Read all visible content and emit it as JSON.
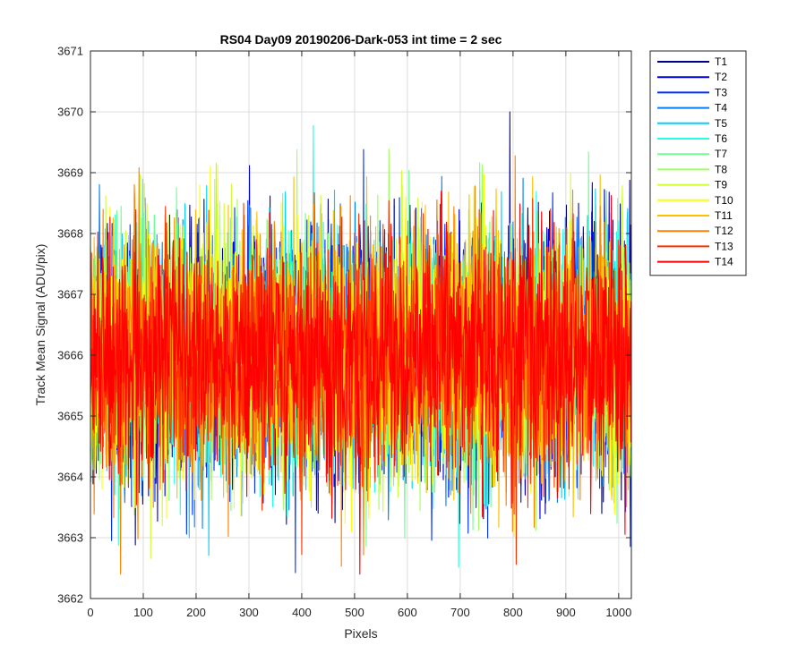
{
  "chart_data": {
    "type": "line",
    "title": "RS04 Day09 20190206-Dark-053 int time = 2 sec",
    "xlabel": "Pixels",
    "ylabel": "Track Mean Signal (ADU/pix)",
    "xlim": [
      0,
      1024
    ],
    "ylim": [
      3662,
      3671
    ],
    "xticks": [
      0,
      100,
      200,
      300,
      400,
      500,
      600,
      700,
      800,
      900,
      1000
    ],
    "yticks": [
      3662,
      3663,
      3664,
      3665,
      3666,
      3667,
      3668,
      3669,
      3670,
      3671
    ],
    "grid": true,
    "legend_position": "outside-top-right",
    "mean": 3666.0,
    "std": 1.0,
    "n_points": 1024,
    "series": [
      {
        "name": "T1",
        "color": "#00008F"
      },
      {
        "name": "T2",
        "color": "#0000DF"
      },
      {
        "name": "T3",
        "color": "#0030FF"
      },
      {
        "name": "T4",
        "color": "#0080FF"
      },
      {
        "name": "T5",
        "color": "#00CFFF"
      },
      {
        "name": "T6",
        "color": "#20FFDF"
      },
      {
        "name": "T7",
        "color": "#70FF8F"
      },
      {
        "name": "T8",
        "color": "#9FFF60"
      },
      {
        "name": "T9",
        "color": "#CFFF30"
      },
      {
        "name": "T10",
        "color": "#FFFF00"
      },
      {
        "name": "T11",
        "color": "#FFBF00"
      },
      {
        "name": "T12",
        "color": "#FF8000"
      },
      {
        "name": "T13",
        "color": "#FF3000"
      },
      {
        "name": "T14",
        "color": "#FF0000"
      }
    ]
  }
}
